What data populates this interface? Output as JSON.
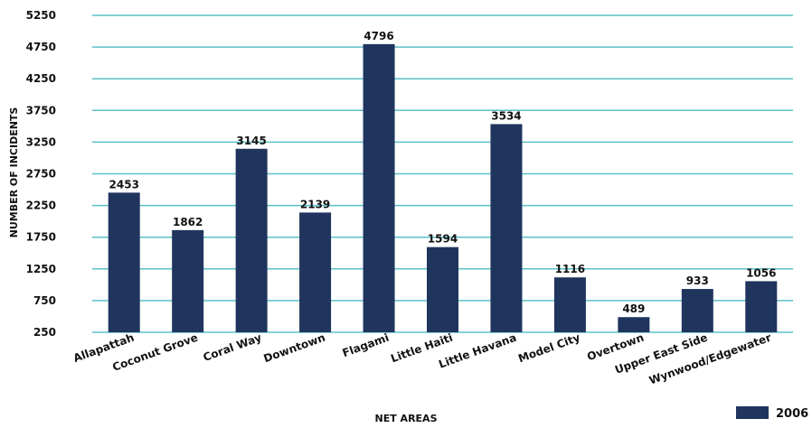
{
  "chart_data": {
    "type": "bar",
    "title": "",
    "xlabel": "NET AREAS",
    "ylabel": "NUMBER OF INCIDENTS",
    "categories": [
      "Allapattah",
      "Coconut Grove",
      "Coral Way",
      "Downtown",
      "Flagami",
      "Little Haiti",
      "Little Havana",
      "Model City",
      "Overtown",
      "Upper East Side",
      "Wynwood/Edgewater"
    ],
    "series": [
      {
        "name": "2006",
        "values": [
          2453,
          1862,
          3145,
          2139,
          4796,
          1594,
          3534,
          1116,
          489,
          933,
          1056
        ],
        "color": "#1f355e"
      }
    ],
    "yticks": [
      250,
      750,
      1250,
      1750,
      2250,
      2750,
      3250,
      3750,
      4250,
      4750,
      5250
    ],
    "ylim": [
      250,
      5250
    ],
    "grid": true,
    "gridline_color": "#5bc0c8",
    "legend_position": "bottom-right"
  }
}
